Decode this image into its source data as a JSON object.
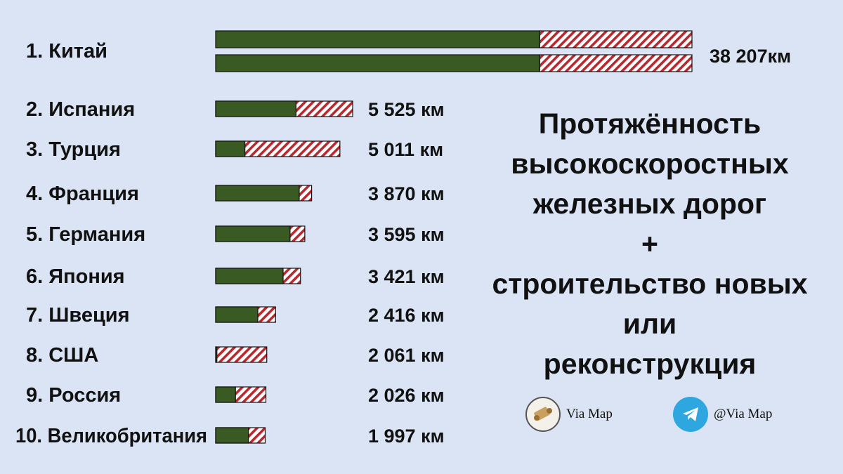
{
  "chart_data": {
    "type": "bar",
    "title": "",
    "xlabel": "",
    "ylabel": "",
    "units": "км",
    "series": [
      {
        "name": "",
        "color": "#3a5a24"
      },
      {
        "name": "",
        "color": "#b8282e",
        "pattern": "hatched"
      }
    ],
    "rows": [
      {
        "label": "1.  Китай",
        "value_label": "38 207км",
        "total": 38207,
        "existing": 26000,
        "planned": 12207
      },
      {
        "label": "2. Испания",
        "value_label": "5 525 км",
        "total": 5525,
        "existing": 3240,
        "planned": 2285
      },
      {
        "label": "3.  Турция",
        "value_label": "5 011 км",
        "total": 5011,
        "existing": 1180,
        "planned": 3831
      },
      {
        "label": "4. Франция",
        "value_label": "3 870 км",
        "total": 3870,
        "existing": 3370,
        "planned": 500
      },
      {
        "label": "5.  Германия",
        "value_label": "3 595 км",
        "total": 3595,
        "existing": 3000,
        "planned": 595
      },
      {
        "label": "6.  Япония",
        "value_label": "3 421 км",
        "total": 3421,
        "existing": 2720,
        "planned": 701
      },
      {
        "label": "7.  Швеция",
        "value_label": "2 416 км",
        "total": 2416,
        "existing": 1700,
        "planned": 716
      },
      {
        "label": "8.  США",
        "value_label": "2 061 км",
        "total": 2061,
        "existing": 50,
        "planned": 2011
      },
      {
        "label": "9.  Россия",
        "value_label": "2 026 км",
        "total": 2026,
        "existing": 800,
        "planned": 1226
      },
      {
        "label": "10.  Великобритания",
        "value_label": "1 997 км",
        "total": 1997,
        "existing": 1320,
        "planned": 677
      }
    ]
  },
  "heading": {
    "line1": "Протяжённость",
    "line2": "высокоскоростных",
    "line3": "железных дорог",
    "line4": "+",
    "line5": "строительство новых или",
    "line6": "реконструкция"
  },
  "social": {
    "channel_name": "Via Map",
    "channel_icon": "map-scroll-icon",
    "telegram_name": "@Via Map",
    "telegram_icon": "telegram-icon"
  }
}
